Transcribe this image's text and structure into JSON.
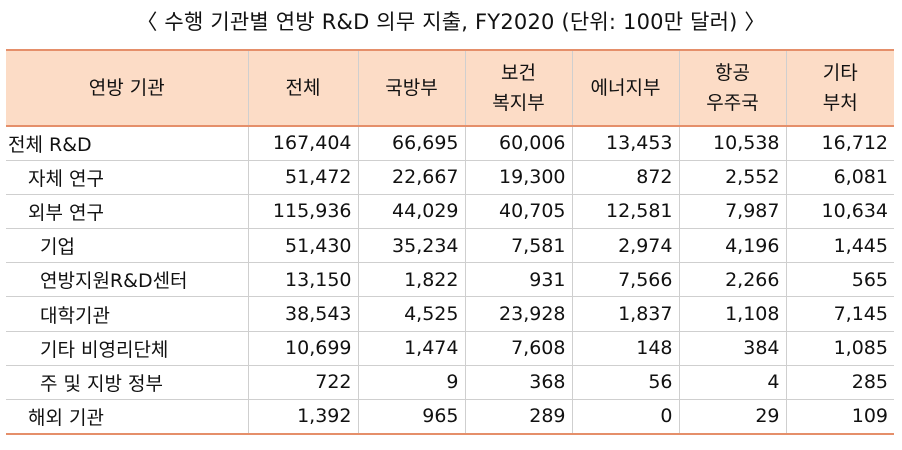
{
  "title": "〈 수행 기관별 연방 R&D 의무 지출, FY2020 (단위: 100만 달러) 〉",
  "header": {
    "c0": [
      "연방 기관"
    ],
    "c1": [
      "전체"
    ],
    "c2": [
      "국방부"
    ],
    "c3": [
      "보건",
      "복지부"
    ],
    "c4": [
      "에너지부"
    ],
    "c5": [
      "항공",
      "우주국"
    ],
    "c6": [
      "기타",
      "부처"
    ]
  },
  "rows": [
    {
      "label": "전체 R&D",
      "level": 0,
      "values": [
        "167,404",
        "66,695",
        "60,006",
        "13,453",
        "10,538",
        "16,712"
      ]
    },
    {
      "label": "자체 연구",
      "level": 1,
      "values": [
        "51,472",
        "22,667",
        "19,300",
        "872",
        "2,552",
        "6,081"
      ]
    },
    {
      "label": "외부 연구",
      "level": 1,
      "values": [
        "115,936",
        "44,029",
        "40,705",
        "12,581",
        "7,987",
        "10,634"
      ]
    },
    {
      "label": "기업",
      "level": 2,
      "values": [
        "51,430",
        "35,234",
        "7,581",
        "2,974",
        "4,196",
        "1,445"
      ]
    },
    {
      "label": "연방지원R&D센터",
      "level": 2,
      "values": [
        "13,150",
        "1,822",
        "931",
        "7,566",
        "2,266",
        "565"
      ]
    },
    {
      "label": "대학기관",
      "level": 2,
      "values": [
        "38,543",
        "4,525",
        "23,928",
        "1,837",
        "1,108",
        "7,145"
      ]
    },
    {
      "label": "기타 비영리단체",
      "level": 2,
      "values": [
        "10,699",
        "1,474",
        "7,608",
        "148",
        "384",
        "1,085"
      ]
    },
    {
      "label": "주 및 지방 정부",
      "level": 2,
      "values": [
        "722",
        "9",
        "368",
        "56",
        "4",
        "285"
      ]
    },
    {
      "label": "해외 기관",
      "level": 1,
      "values": [
        "1,392",
        "965",
        "289",
        "0",
        "29",
        "109"
      ]
    }
  ]
}
